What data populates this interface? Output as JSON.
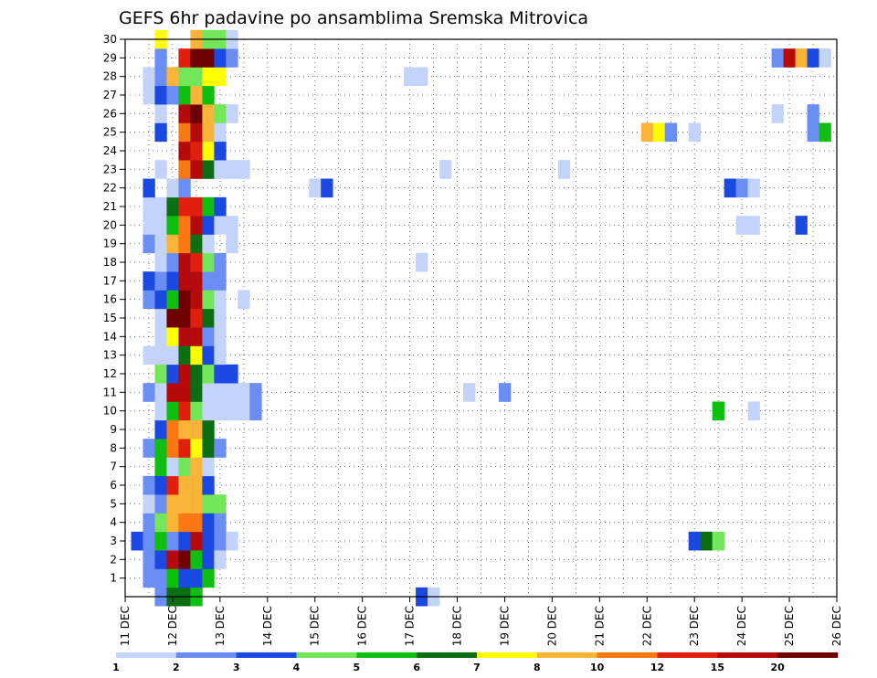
{
  "chart_data": {
    "type": "heatmap",
    "title": "GEFS 6hr padavine po ansamblima Sremska Mitrovica",
    "xlabel": "",
    "ylabel": "",
    "x_ticks": [
      "11 DEC",
      "12 DEC",
      "13 DEC",
      "14 DEC",
      "15 DEC",
      "16 DEC",
      "17 DEC",
      "18 DEC",
      "19 DEC",
      "20 DEC",
      "21 DEC",
      "22 DEC",
      "23 DEC",
      "24 DEC",
      "25 DEC",
      "26 DEC"
    ],
    "x_range_days": [
      11,
      26
    ],
    "x_step_hours": 6,
    "y_ticks": [
      1,
      2,
      3,
      4,
      5,
      6,
      7,
      8,
      9,
      10,
      11,
      12,
      13,
      14,
      15,
      16,
      17,
      18,
      19,
      20,
      21,
      22,
      23,
      24,
      25,
      26,
      27,
      28,
      29,
      30
    ],
    "y_range": [
      0,
      30
    ],
    "grid": true,
    "colorbar": {
      "position": "bottom",
      "labels": [
        "1",
        "2",
        "3",
        "4",
        "5",
        "6",
        "7",
        "8",
        "10",
        "12",
        "15",
        "20"
      ],
      "colors": [
        "#c4d3fa",
        "#6b8ef5",
        "#1a48e0",
        "#73e65a",
        "#0fbf0f",
        "#0c6e12",
        "#ffff00",
        "#fab437",
        "#fa7814",
        "#e0200c",
        "#b40a0a",
        "#6e0000"
      ]
    },
    "cells": [
      [
        0,
        11.75,
        2
      ],
      [
        0,
        12.0,
        6
      ],
      [
        0,
        12.25,
        6
      ],
      [
        0,
        12.5,
        5
      ],
      [
        1,
        11.5,
        2
      ],
      [
        1,
        11.75,
        2
      ],
      [
        1,
        12.0,
        5
      ],
      [
        1,
        12.25,
        3
      ],
      [
        1,
        12.5,
        3
      ],
      [
        1,
        12.75,
        5
      ],
      [
        2,
        11.5,
        2
      ],
      [
        2,
        11.75,
        3
      ],
      [
        2,
        12.0,
        11
      ],
      [
        2,
        12.25,
        12
      ],
      [
        2,
        12.5,
        5
      ],
      [
        2,
        12.75,
        3
      ],
      [
        2,
        13.0,
        1
      ],
      [
        3,
        11.25,
        3
      ],
      [
        3,
        11.5,
        2
      ],
      [
        3,
        11.75,
        5
      ],
      [
        3,
        12.0,
        2
      ],
      [
        3,
        12.25,
        3
      ],
      [
        3,
        12.5,
        11
      ],
      [
        3,
        12.75,
        3
      ],
      [
        3,
        13.0,
        2
      ],
      [
        3,
        13.25,
        1
      ],
      [
        4,
        11.5,
        2
      ],
      [
        4,
        11.75,
        4
      ],
      [
        4,
        12.0,
        8
      ],
      [
        4,
        12.25,
        9
      ],
      [
        4,
        12.5,
        9
      ],
      [
        4,
        12.75,
        3
      ],
      [
        4,
        13.0,
        2
      ],
      [
        5,
        11.5,
        1
      ],
      [
        5,
        11.75,
        2
      ],
      [
        5,
        12.0,
        8
      ],
      [
        5,
        12.25,
        8
      ],
      [
        5,
        12.5,
        8
      ],
      [
        5,
        12.75,
        4
      ],
      [
        5,
        13.0,
        4
      ],
      [
        6,
        11.5,
        2
      ],
      [
        6,
        11.75,
        3
      ],
      [
        6,
        12.0,
        10
      ],
      [
        6,
        12.25,
        8
      ],
      [
        6,
        12.5,
        8
      ],
      [
        6,
        12.75,
        3
      ],
      [
        7,
        11.75,
        5
      ],
      [
        7,
        12.0,
        1
      ],
      [
        7,
        12.25,
        4
      ],
      [
        7,
        12.5,
        8
      ],
      [
        7,
        12.75,
        1
      ],
      [
        8,
        11.5,
        2
      ],
      [
        8,
        11.75,
        5
      ],
      [
        8,
        12.0,
        9
      ],
      [
        8,
        12.25,
        10
      ],
      [
        8,
        12.5,
        7
      ],
      [
        8,
        12.75,
        6
      ],
      [
        8,
        13.0,
        2
      ],
      [
        9,
        11.75,
        3
      ],
      [
        9,
        12.0,
        9
      ],
      [
        9,
        12.25,
        8
      ],
      [
        9,
        12.5,
        8
      ],
      [
        9,
        12.75,
        6
      ],
      [
        10,
        11.75,
        1
      ],
      [
        10,
        12.0,
        5
      ],
      [
        10,
        12.25,
        10
      ],
      [
        10,
        12.5,
        4
      ],
      [
        10,
        12.75,
        1
      ],
      [
        10,
        13.0,
        1
      ],
      [
        10,
        13.25,
        1
      ],
      [
        10,
        13.5,
        1
      ],
      [
        10,
        13.75,
        2
      ],
      [
        11,
        11.5,
        2
      ],
      [
        11,
        11.75,
        1
      ],
      [
        11,
        12.0,
        11
      ],
      [
        11,
        12.25,
        11
      ],
      [
        11,
        12.5,
        6
      ],
      [
        11,
        12.75,
        1
      ],
      [
        11,
        13.0,
        1
      ],
      [
        11,
        13.25,
        1
      ],
      [
        11,
        13.5,
        1
      ],
      [
        11,
        13.75,
        2
      ],
      [
        12,
        11.75,
        4
      ],
      [
        12,
        12.0,
        3
      ],
      [
        12,
        12.25,
        11
      ],
      [
        12,
        12.5,
        6
      ],
      [
        12,
        12.75,
        4
      ],
      [
        12,
        13.0,
        3
      ],
      [
        12,
        13.25,
        3
      ],
      [
        13,
        11.5,
        1
      ],
      [
        13,
        11.75,
        1
      ],
      [
        13,
        12.0,
        1
      ],
      [
        13,
        12.25,
        6
      ],
      [
        13,
        12.5,
        7
      ],
      [
        13,
        12.75,
        3
      ],
      [
        13,
        13.0,
        1
      ],
      [
        14,
        11.75,
        1
      ],
      [
        14,
        12.0,
        7
      ],
      [
        14,
        12.25,
        11
      ],
      [
        14,
        12.5,
        11
      ],
      [
        14,
        12.75,
        2
      ],
      [
        14,
        13.0,
        1
      ],
      [
        15,
        11.75,
        1
      ],
      [
        15,
        12.0,
        12
      ],
      [
        15,
        12.25,
        12
      ],
      [
        15,
        12.5,
        10
      ],
      [
        15,
        12.75,
        6
      ],
      [
        15,
        13.0,
        1
      ],
      [
        16,
        11.5,
        2
      ],
      [
        16,
        11.75,
        3
      ],
      [
        16,
        12.0,
        5
      ],
      [
        16,
        12.25,
        12
      ],
      [
        16,
        12.5,
        11
      ],
      [
        16,
        12.75,
        4
      ],
      [
        16,
        13.0,
        1
      ],
      [
        16,
        13.5,
        1
      ],
      [
        17,
        11.5,
        3
      ],
      [
        17,
        11.75,
        2
      ],
      [
        17,
        12.0,
        3
      ],
      [
        17,
        12.25,
        11
      ],
      [
        17,
        12.5,
        11
      ],
      [
        17,
        12.75,
        2
      ],
      [
        17,
        13.0,
        2
      ],
      [
        18,
        11.75,
        1
      ],
      [
        18,
        12.0,
        2
      ],
      [
        18,
        12.25,
        11
      ],
      [
        18,
        12.5,
        10
      ],
      [
        18,
        12.75,
        4
      ],
      [
        18,
        13.0,
        2
      ],
      [
        19,
        11.5,
        2
      ],
      [
        19,
        11.75,
        1
      ],
      [
        19,
        12.0,
        8
      ],
      [
        19,
        12.25,
        9
      ],
      [
        19,
        12.5,
        6
      ],
      [
        19,
        12.75,
        1
      ],
      [
        19,
        13.25,
        1
      ],
      [
        20,
        11.5,
        1
      ],
      [
        20,
        11.75,
        1
      ],
      [
        20,
        12.0,
        5
      ],
      [
        20,
        12.25,
        9
      ],
      [
        20,
        12.5,
        11
      ],
      [
        20,
        12.75,
        3
      ],
      [
        20,
        13.0,
        1
      ],
      [
        20,
        13.25,
        1
      ],
      [
        21,
        11.5,
        1
      ],
      [
        21,
        11.75,
        1
      ],
      [
        21,
        12.0,
        6
      ],
      [
        21,
        12.25,
        10
      ],
      [
        21,
        12.5,
        10
      ],
      [
        21,
        12.75,
        5
      ],
      [
        21,
        13.0,
        3
      ],
      [
        22,
        11.5,
        3
      ],
      [
        22,
        12.0,
        1
      ],
      [
        22,
        12.25,
        2
      ],
      [
        22,
        15.0,
        1
      ],
      [
        22,
        15.25,
        3
      ],
      [
        23,
        11.75,
        1
      ],
      [
        23,
        12.25,
        9
      ],
      [
        23,
        12.5,
        11
      ],
      [
        23,
        12.75,
        6
      ],
      [
        23,
        13.0,
        1
      ],
      [
        23,
        13.25,
        1
      ],
      [
        23,
        13.5,
        1
      ],
      [
        24,
        12.25,
        11
      ],
      [
        24,
        12.5,
        10
      ],
      [
        24,
        12.75,
        7
      ],
      [
        24,
        13.0,
        3
      ],
      [
        25,
        11.75,
        3
      ],
      [
        25,
        12.25,
        9
      ],
      [
        25,
        12.5,
        11
      ],
      [
        25,
        12.75,
        8
      ],
      [
        25,
        13.0,
        1
      ],
      [
        26,
        11.75,
        1
      ],
      [
        26,
        12.25,
        11
      ],
      [
        26,
        12.5,
        12
      ],
      [
        26,
        12.75,
        8
      ],
      [
        26,
        13.0,
        4
      ],
      [
        26,
        13.25,
        1
      ],
      [
        27,
        11.5,
        1
      ],
      [
        27,
        11.75,
        3
      ],
      [
        27,
        12.0,
        2
      ],
      [
        27,
        12.25,
        5
      ],
      [
        27,
        12.5,
        8
      ],
      [
        27,
        12.75,
        5
      ],
      [
        28,
        11.5,
        1
      ],
      [
        28,
        11.75,
        2
      ],
      [
        28,
        12.0,
        8
      ],
      [
        28,
        12.25,
        4
      ],
      [
        28,
        12.5,
        4
      ],
      [
        28,
        12.75,
        7
      ],
      [
        28,
        13.0,
        7
      ],
      [
        29,
        11.75,
        2
      ],
      [
        29,
        12.25,
        10
      ],
      [
        29,
        12.5,
        12
      ],
      [
        29,
        12.75,
        12
      ],
      [
        29,
        13.0,
        3
      ],
      [
        29,
        13.25,
        2
      ],
      [
        30,
        11.75,
        7
      ],
      [
        30,
        12.5,
        8
      ],
      [
        30,
        12.75,
        4
      ],
      [
        30,
        13.0,
        4
      ],
      [
        30,
        13.25,
        1
      ]
    ],
    "sparse_cells": [
      [
        0,
        17.25,
        3
      ],
      [
        0,
        17.5,
        1
      ],
      [
        3,
        23.0,
        3
      ],
      [
        3,
        23.25,
        6
      ],
      [
        3,
        23.5,
        4
      ],
      [
        10,
        23.5,
        5
      ],
      [
        10,
        24.25,
        1
      ],
      [
        11,
        18.25,
        1
      ],
      [
        11,
        19.0,
        2
      ],
      [
        18,
        17.25,
        1
      ],
      [
        20,
        24.0,
        1
      ],
      [
        20,
        24.25,
        1
      ],
      [
        20,
        25.25,
        3
      ],
      [
        22,
        23.75,
        3
      ],
      [
        22,
        24.0,
        2
      ],
      [
        22,
        24.25,
        1
      ],
      [
        23,
        17.75,
        1
      ],
      [
        23,
        20.25,
        1
      ],
      [
        25,
        22.0,
        8
      ],
      [
        25,
        22.25,
        7
      ],
      [
        25,
        22.5,
        2
      ],
      [
        25,
        23.0,
        1
      ],
      [
        25,
        25.5,
        2
      ],
      [
        25,
        25.75,
        5
      ],
      [
        26,
        24.75,
        1
      ],
      [
        26,
        25.5,
        2
      ],
      [
        28,
        17.0,
        1
      ],
      [
        28,
        17.25,
        1
      ],
      [
        29,
        24.75,
        2
      ],
      [
        29,
        25.0,
        11
      ],
      [
        29,
        25.25,
        8
      ],
      [
        29,
        25.5,
        3
      ],
      [
        29,
        25.75,
        1
      ]
    ]
  }
}
